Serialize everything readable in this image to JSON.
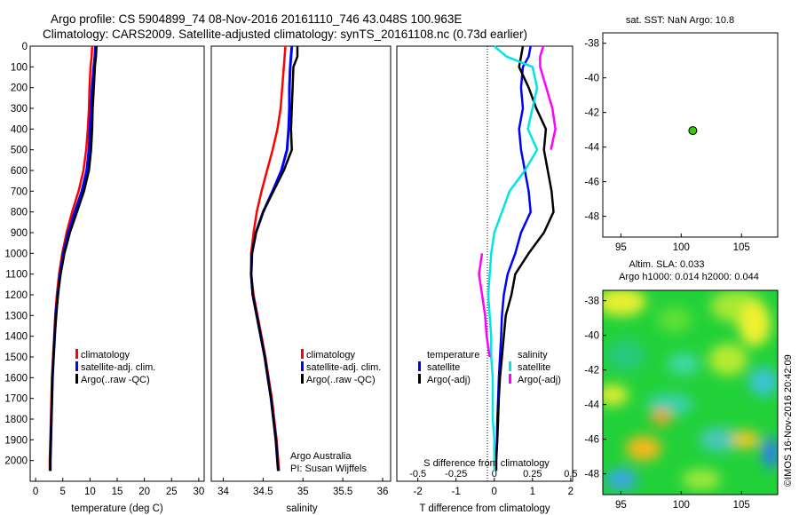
{
  "header": {
    "line1": "Argo profile: CS 5904899_74 08-Nov-2016 20161110_746 43.048S 100.963E",
    "line2": "Climatology: CARS2009. Satellite-adjusted climatology: synTS_20161108.nc (0.73d earlier)"
  },
  "colors": {
    "climatology": "#ff0000",
    "satellite": "#0000ff",
    "argo": "#000000",
    "sal_satellite": "#00e5e5",
    "sal_argo": "#ff00ff",
    "float": "#33cc00"
  },
  "chart_data": [
    {
      "type": "line",
      "id": "temperature",
      "xlabel": "temperature (deg C)",
      "xlim": [
        -1,
        31
      ],
      "ylim": [
        2100,
        0
      ],
      "xticks": [
        "0",
        "5",
        "10",
        "15",
        "20",
        "25",
        "30"
      ],
      "yticks": [
        "0",
        "100",
        "200",
        "300",
        "400",
        "500",
        "600",
        "700",
        "800",
        "900",
        "1000",
        "1100",
        "1200",
        "1300",
        "1400",
        "1500",
        "1600",
        "1700",
        "1800",
        "1900",
        "2000"
      ],
      "depth": [
        0,
        50,
        100,
        200,
        300,
        400,
        500,
        600,
        700,
        800,
        900,
        1000,
        1100,
        1200,
        1300,
        1400,
        1500,
        1600,
        1700,
        1800,
        1900,
        2000,
        2050
      ],
      "legend": [
        "climatology",
        "satellite-adj. clim.",
        "Argo(..raw -QC)"
      ],
      "series": [
        {
          "name": "climatology",
          "values": [
            10.4,
            10.3,
            10.1,
            9.9,
            9.8,
            9.6,
            9.3,
            8.8,
            7.9,
            6.7,
            5.7,
            4.9,
            4.3,
            3.9,
            3.6,
            3.4,
            3.2,
            3.0,
            2.9,
            2.8,
            2.7,
            2.6,
            2.6
          ]
        },
        {
          "name": "satellite-adj. clim.",
          "values": [
            11.0,
            10.9,
            10.7,
            10.4,
            10.2,
            10.0,
            9.8,
            9.4,
            8.5,
            7.2,
            6.0,
            5.1,
            4.5,
            4.1,
            3.7,
            3.5,
            3.3,
            3.1,
            3.0,
            2.9,
            2.8,
            2.7,
            2.7
          ]
        },
        {
          "name": "Argo(..raw -QC)",
          "values": [
            11.2,
            11.1,
            10.9,
            10.7,
            10.5,
            10.4,
            10.2,
            9.8,
            8.9,
            7.6,
            6.3,
            5.3,
            4.6,
            4.1,
            3.8,
            3.5,
            3.3,
            3.1,
            3.0,
            2.9,
            2.8,
            2.7,
            2.7
          ]
        }
      ]
    },
    {
      "type": "line",
      "id": "salinity",
      "xlabel": "salinity",
      "xlim": [
        33.85,
        36.1
      ],
      "ylim": [
        2100,
        0
      ],
      "xticks": [
        "34",
        "34.5",
        "35",
        "35.5",
        "36"
      ],
      "depth": [
        0,
        50,
        100,
        200,
        300,
        400,
        500,
        600,
        700,
        800,
        900,
        1000,
        1100,
        1200,
        1300,
        1400,
        1500,
        1600,
        1700,
        1800,
        1900,
        2000,
        2050
      ],
      "legend": [
        "climatology",
        "satellite-adj. clim.",
        "Argo(..raw -QC)"
      ],
      "series": [
        {
          "name": "climatology",
          "values": [
            34.78,
            34.77,
            34.76,
            34.74,
            34.72,
            34.68,
            34.62,
            34.55,
            34.48,
            34.42,
            34.38,
            34.35,
            34.35,
            34.38,
            34.43,
            34.48,
            34.53,
            34.57,
            34.61,
            34.64,
            34.67,
            34.69,
            34.7
          ]
        },
        {
          "name": "satellite-adj. clim.",
          "values": [
            34.86,
            34.85,
            34.84,
            34.83,
            34.83,
            34.82,
            34.8,
            34.73,
            34.62,
            34.5,
            34.41,
            34.36,
            34.35,
            34.37,
            34.42,
            34.47,
            34.52,
            34.56,
            34.6,
            34.63,
            34.66,
            34.68,
            34.69
          ]
        },
        {
          "name": "Argo(..raw -QC)",
          "values": [
            34.93,
            34.93,
            34.88,
            34.87,
            34.86,
            34.85,
            34.86,
            34.76,
            34.63,
            34.5,
            34.41,
            34.36,
            34.35,
            34.37,
            34.42,
            34.47,
            34.52,
            34.56,
            34.6,
            34.63,
            34.66,
            34.68,
            34.69
          ]
        }
      ],
      "annotation": [
        "Argo Australia",
        "PI: Susan Wijffels"
      ]
    },
    {
      "type": "line",
      "id": "difference",
      "xlabel": "T difference from climatology",
      "xlabel2": "S difference from climatology",
      "xlim": [
        -2.55,
        2.05
      ],
      "ylim": [
        2100,
        0
      ],
      "xticks": [
        "-2",
        "-1",
        "0",
        "1",
        "2"
      ],
      "xticks2": [
        "-0.5",
        "-0.25",
        "0",
        "0.25",
        "0.5"
      ],
      "depth": [
        0,
        50,
        100,
        200,
        300,
        400,
        500,
        600,
        700,
        800,
        900,
        1000,
        1100,
        1200,
        1300,
        1400,
        1500,
        1600,
        1700,
        1800,
        1900,
        2000,
        2050
      ],
      "legend_temperature": {
        "title": "temperature",
        "items": [
          "satellite",
          "Argo(-adj)"
        ]
      },
      "legend_salinity": {
        "title": "salinity",
        "items": [
          "satellite",
          "Argo(-adj)"
        ]
      },
      "series": [
        {
          "name": "temperature satellite",
          "values": [
            0.95,
            0.9,
            0.75,
            0.7,
            0.75,
            0.65,
            0.7,
            0.8,
            0.9,
            0.95,
            0.7,
            0.55,
            0.35,
            0.25,
            0.2,
            0.18,
            0.15,
            0.12,
            0.1,
            0.08,
            0.07,
            0.05,
            0.05
          ]
        },
        {
          "name": "temperature Argo(-adj)",
          "values": [
            0.75,
            0.7,
            0.65,
            0.9,
            1.1,
            1.35,
            1.3,
            1.4,
            1.5,
            1.55,
            1.3,
            0.9,
            0.55,
            0.45,
            0.3,
            0.25,
            0.2,
            0.15,
            0.12,
            0.1,
            0.08,
            0.05,
            0.05
          ]
        },
        {
          "name": "salinity satellite",
          "values": [
            0.0,
            0.08,
            0.25,
            0.28,
            0.25,
            0.22,
            0.28,
            0.2,
            0.1,
            0.05,
            0.0,
            -0.02,
            -0.03,
            -0.04,
            -0.03,
            -0.02,
            -0.02,
            -0.01,
            -0.01,
            -0.01,
            0.0,
            0.0,
            0.0
          ]
        },
        {
          "name": "salinity Argo(-adj)",
          "values": [
            0.32,
            0.3,
            0.3,
            0.34,
            0.38,
            0.4,
            0.37,
            null,
            null,
            null,
            null,
            -0.08,
            -0.1,
            -0.08,
            -0.06,
            -0.05,
            -0.03,
            null,
            null,
            null,
            null,
            null,
            null
          ]
        }
      ]
    },
    {
      "type": "scatter",
      "id": "location",
      "title": "sat. SST: NaN Argo: 10.8",
      "xlim": [
        93.5,
        108
      ],
      "ylim": [
        -49.2,
        -37.4
      ],
      "xticks": [
        "95",
        "100",
        "105"
      ],
      "yticks": [
        "-38",
        "-40",
        "-42",
        "-44",
        "-46",
        "-48"
      ],
      "points": [
        {
          "x": 100.963,
          "y": -43.048
        }
      ]
    },
    {
      "type": "heatmap",
      "id": "altimetry",
      "title1": "Altim. SLA: 0.033",
      "title2": "Argo h1000: 0.014 h2000: 0.044",
      "xlim": [
        93.5,
        108
      ],
      "ylim": [
        -49.2,
        -37.4
      ],
      "xticks": [
        "95",
        "100",
        "105"
      ],
      "yticks": [
        "-38",
        "-40",
        "-42",
        "-44",
        "-46",
        "-48"
      ]
    }
  ],
  "credit": "©IMOS 16-Nov-2016 20:42:09"
}
